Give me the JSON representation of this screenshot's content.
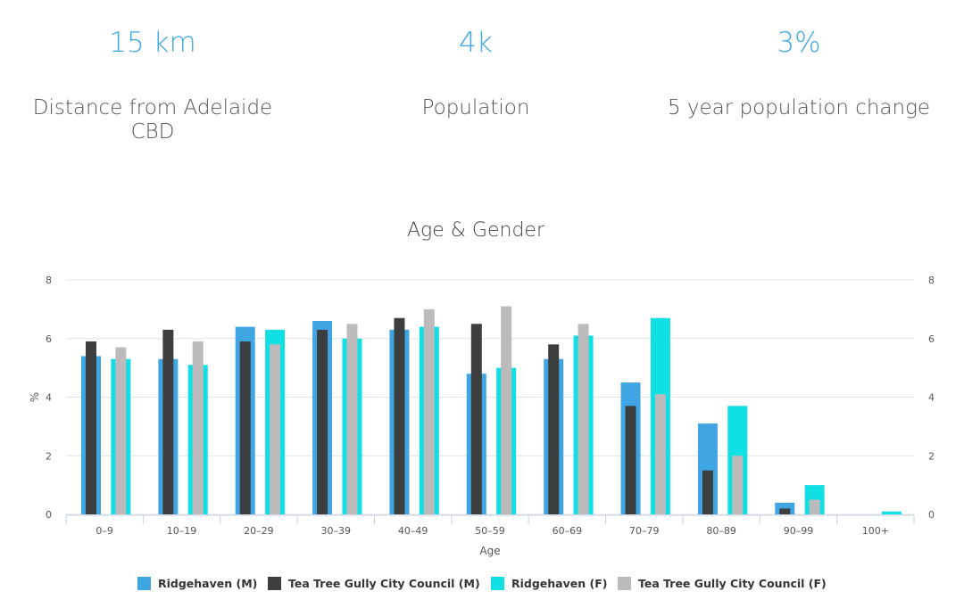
{
  "stats": [
    {
      "value": "15 km",
      "label": "Distance from Adelaide CBD"
    },
    {
      "value": "4k",
      "label": "Population"
    },
    {
      "value": "3%",
      "label": "5 year population change"
    }
  ],
  "colors": {
    "stat_value": "#3ea8e6",
    "ridgehaven_m": "#40a6e3",
    "council_m": "#3d3e40",
    "ridgehaven_f": "#10dfe3",
    "council_f": "#bdbabb",
    "grid": "#e0e3ea",
    "axis_text": "#555555"
  },
  "chart_data": {
    "type": "bar",
    "title": "Age & Gender",
    "xlabel": "Age",
    "ylabel": "%",
    "ylim": [
      0,
      8
    ],
    "yticks": [
      0,
      2,
      4,
      6,
      8
    ],
    "grid": true,
    "legend_position": "bottom",
    "right_axis": true,
    "categories": [
      "0–9",
      "10–19",
      "20–29",
      "30–39",
      "40–49",
      "50–59",
      "60–69",
      "70–79",
      "80–89",
      "90–99",
      "100+"
    ],
    "series": [
      {
        "name": "Ridgehaven (M)",
        "color_key": "ridgehaven_m",
        "values": [
          5.4,
          5.3,
          6.4,
          6.6,
          6.3,
          4.8,
          5.3,
          4.5,
          3.1,
          0.4,
          0.0
        ]
      },
      {
        "name": "Tea Tree Gully City Council (M)",
        "color_key": "council_m",
        "values": [
          5.9,
          6.3,
          5.9,
          6.3,
          6.7,
          6.5,
          5.8,
          3.7,
          1.5,
          0.2,
          0.0
        ]
      },
      {
        "name": "Ridgehaven (F)",
        "color_key": "ridgehaven_f",
        "values": [
          5.3,
          5.1,
          6.3,
          6.0,
          6.4,
          5.0,
          6.1,
          6.7,
          3.7,
          1.0,
          0.1
        ]
      },
      {
        "name": "Tea Tree Gully City Council (F)",
        "color_key": "council_f",
        "values": [
          5.7,
          5.9,
          5.8,
          6.5,
          7.0,
          7.1,
          6.5,
          4.1,
          2.0,
          0.5,
          0.0
        ]
      }
    ]
  }
}
